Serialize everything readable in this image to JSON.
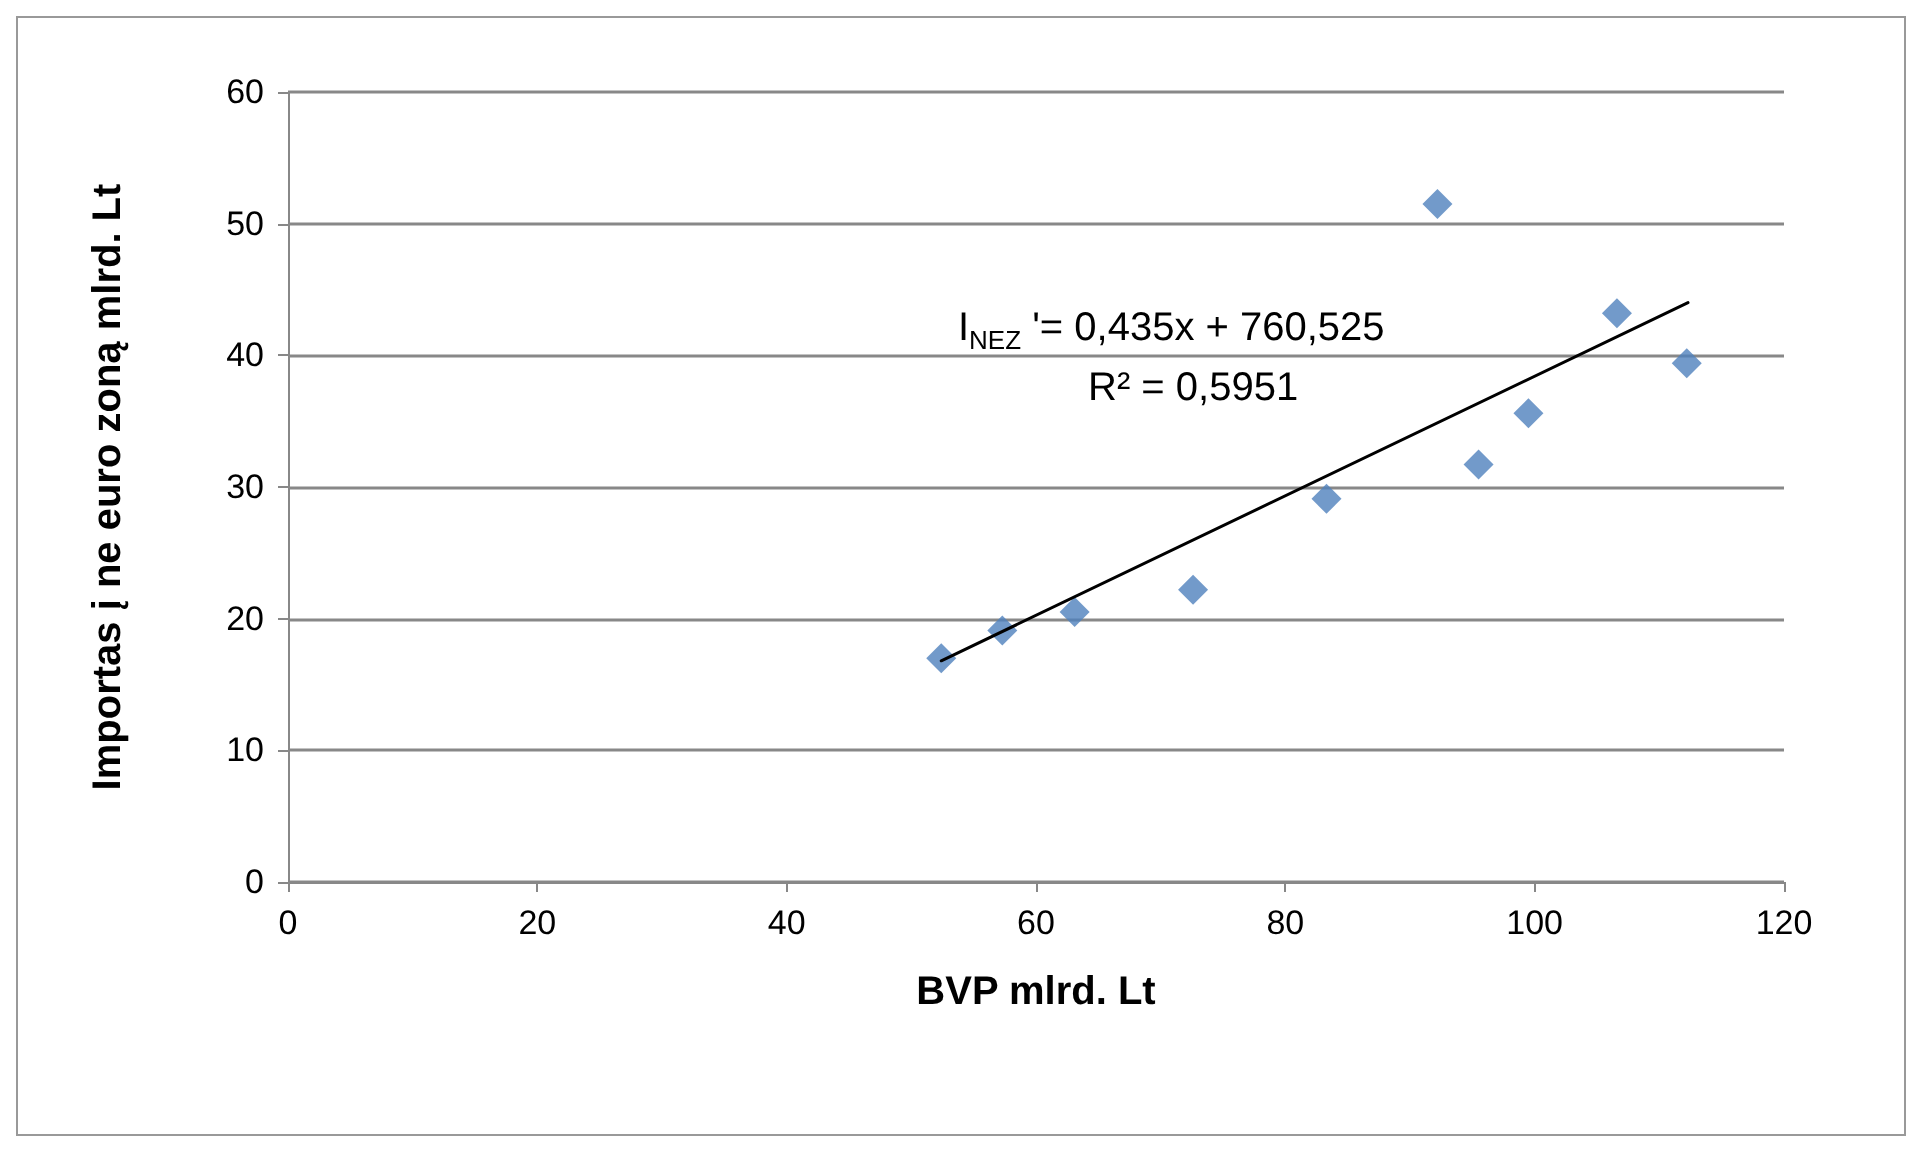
{
  "chart_data": {
    "type": "scatter",
    "xlabel": "BVP mlrd. Lt",
    "ylabel": "Importas į ne euro zoną mlrd. Lt",
    "xlim": [
      0,
      120
    ],
    "xticks": [
      0,
      20,
      40,
      60,
      80,
      100,
      120
    ],
    "ylim": [
      0,
      60
    ],
    "yticks": [
      0,
      10,
      20,
      30,
      40,
      50,
      60
    ],
    "grid": "y",
    "marker": "diamond",
    "series": [
      {
        "color": "#4f81bd",
        "x": [
          52.4,
          57.3,
          63.1,
          72.6,
          83.3,
          92.2,
          95.5,
          99.5,
          106.6,
          112.2
        ],
        "values": [
          17.0,
          19.1,
          20.5,
          22.2,
          29.1,
          51.5,
          31.7,
          35.6,
          43.2,
          39.4
        ]
      },
      {
        "type": "line",
        "color": "#000000",
        "marker": "none",
        "x": [
          52.4,
          112.3
        ],
        "values": [
          16.8,
          44.0
        ]
      }
    ],
    "annotations": [
      "I$_{NEZ}$ '= 0,435x + 760,525",
      "R² = 0,5951"
    ]
  }
}
